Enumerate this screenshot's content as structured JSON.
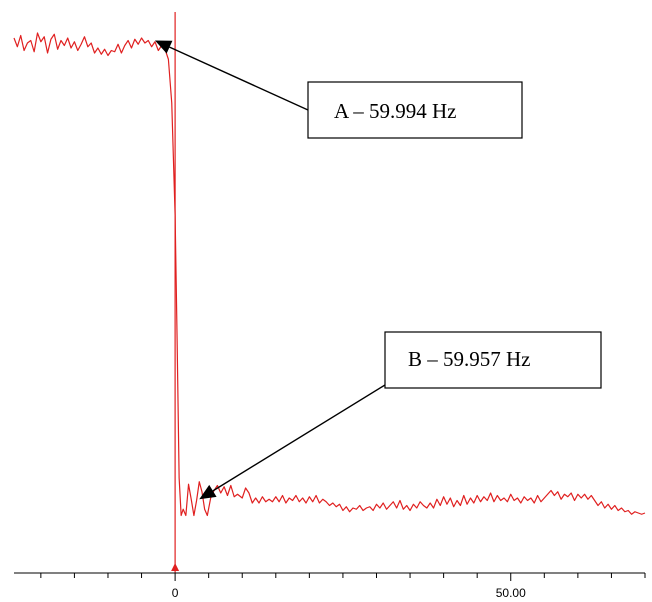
{
  "chart_data": {
    "type": "line",
    "title": "",
    "xlabel": "",
    "ylabel": "",
    "colors": {
      "series": "#e02020",
      "event_marker": "#e02020",
      "axis": "#000000"
    },
    "xlim": [
      -24,
      70
    ],
    "x_ticks": [
      {
        "x": 0,
        "label": "0"
      },
      {
        "x": 50,
        "label": "50.00"
      }
    ],
    "event_marker_x": 0,
    "series": [
      {
        "values": [
          [
            -24,
            59.9942
          ],
          [
            -23.5,
            59.9935
          ],
          [
            -23,
            59.9944
          ],
          [
            -22.5,
            59.9932
          ],
          [
            -22,
            59.9938
          ],
          [
            -21.5,
            59.994
          ],
          [
            -21,
            59.9931
          ],
          [
            -20.5,
            59.9946
          ],
          [
            -20,
            59.9939
          ],
          [
            -19.5,
            59.9943
          ],
          [
            -19,
            59.993
          ],
          [
            -18.5,
            59.9941
          ],
          [
            -18,
            59.9945
          ],
          [
            -17.5,
            59.9933
          ],
          [
            -17,
            59.994
          ],
          [
            -16.5,
            59.9936
          ],
          [
            -16,
            59.9942
          ],
          [
            -15.5,
            59.9934
          ],
          [
            -15,
            59.9939
          ],
          [
            -14.5,
            59.9932
          ],
          [
            -14,
            59.9937
          ],
          [
            -13.5,
            59.9943
          ],
          [
            -13,
            59.9935
          ],
          [
            -12.5,
            59.9938
          ],
          [
            -12,
            59.993
          ],
          [
            -11.5,
            59.9934
          ],
          [
            -11,
            59.9929
          ],
          [
            -10.5,
            59.9933
          ],
          [
            -10,
            59.9928
          ],
          [
            -9.5,
            59.9932
          ],
          [
            -9,
            59.9931
          ],
          [
            -8.5,
            59.9937
          ],
          [
            -8,
            59.993
          ],
          [
            -7.5,
            59.9936
          ],
          [
            -7,
            59.994
          ],
          [
            -6.5,
            59.9934
          ],
          [
            -6,
            59.9941
          ],
          [
            -5.5,
            59.9937
          ],
          [
            -5,
            59.9942
          ],
          [
            -4.5,
            59.9938
          ],
          [
            -4,
            59.994
          ],
          [
            -3.5,
            59.9935
          ],
          [
            -3,
            59.9939
          ],
          [
            -2.5,
            59.9932
          ],
          [
            -2,
            59.9936
          ],
          [
            -1.5,
            59.9933
          ],
          [
            -1,
            59.9925
          ],
          [
            -0.5,
            59.989
          ],
          [
            0,
            59.98
          ],
          [
            0.3,
            59.97
          ],
          [
            0.6,
            59.959
          ],
          [
            0.9,
            59.956
          ],
          [
            1.2,
            59.9565
          ],
          [
            1.6,
            59.956
          ],
          [
            2,
            59.9585
          ],
          [
            2.4,
            59.9573
          ],
          [
            2.8,
            59.956
          ],
          [
            3.2,
            59.9572
          ],
          [
            3.6,
            59.9587
          ],
          [
            4,
            59.9579
          ],
          [
            4.4,
            59.9565
          ],
          [
            4.8,
            59.956
          ],
          [
            5.3,
            59.9574
          ],
          [
            5.8,
            59.958
          ],
          [
            6.3,
            59.9584
          ],
          [
            6.8,
            59.9578
          ],
          [
            7.3,
            59.9583
          ],
          [
            7.8,
            59.9576
          ],
          [
            8.3,
            59.9584
          ],
          [
            8.8,
            59.9575
          ],
          [
            9.3,
            59.9577
          ],
          [
            10,
            59.9574
          ],
          [
            10.5,
            59.9582
          ],
          [
            11,
            59.9578
          ],
          [
            11.5,
            59.957
          ],
          [
            12,
            59.9574
          ],
          [
            12.5,
            59.957
          ],
          [
            13,
            59.9575
          ],
          [
            13.5,
            59.9571
          ],
          [
            14,
            59.9573
          ],
          [
            14.5,
            59.9571
          ],
          [
            15,
            59.9575
          ],
          [
            15.5,
            59.9571
          ],
          [
            16,
            59.9576
          ],
          [
            16.5,
            59.957
          ],
          [
            17,
            59.9574
          ],
          [
            17.5,
            59.9572
          ],
          [
            18,
            59.9576
          ],
          [
            18.5,
            59.9571
          ],
          [
            19,
            59.9574
          ],
          [
            19.5,
            59.957
          ],
          [
            20,
            59.9575
          ],
          [
            20.5,
            59.9571
          ],
          [
            21,
            59.9576
          ],
          [
            21.5,
            59.957
          ],
          [
            22,
            59.9573
          ],
          [
            22.5,
            59.9571
          ],
          [
            23,
            59.9568
          ],
          [
            23.5,
            59.957
          ],
          [
            24,
            59.9567
          ],
          [
            24.5,
            59.9569
          ],
          [
            25,
            59.9564
          ],
          [
            25.5,
            59.9567
          ],
          [
            26,
            59.9563
          ],
          [
            26.5,
            59.9566
          ],
          [
            27,
            59.9565
          ],
          [
            27.5,
            59.9568
          ],
          [
            28,
            59.9564
          ],
          [
            28.5,
            59.9566
          ],
          [
            29,
            59.9567
          ],
          [
            29.5,
            59.9564
          ],
          [
            30,
            59.9569
          ],
          [
            30.5,
            59.9566
          ],
          [
            31,
            59.957
          ],
          [
            31.5,
            59.9565
          ],
          [
            32,
            59.9568
          ],
          [
            32.5,
            59.9571
          ],
          [
            33,
            59.9566
          ],
          [
            33.5,
            59.9572
          ],
          [
            34,
            59.9565
          ],
          [
            34.5,
            59.9568
          ],
          [
            35,
            59.9564
          ],
          [
            35.5,
            59.9569
          ],
          [
            36,
            59.9566
          ],
          [
            36.5,
            59.9571
          ],
          [
            37,
            59.9568
          ],
          [
            37.5,
            59.9566
          ],
          [
            38,
            59.957
          ],
          [
            38.5,
            59.9566
          ],
          [
            39,
            59.9573
          ],
          [
            39.5,
            59.9568
          ],
          [
            40,
            59.9575
          ],
          [
            40.5,
            59.9569
          ],
          [
            41,
            59.9574
          ],
          [
            41.5,
            59.9567
          ],
          [
            42,
            59.9572
          ],
          [
            42.5,
            59.9568
          ],
          [
            43,
            59.9576
          ],
          [
            43.5,
            59.9569
          ],
          [
            44,
            59.9574
          ],
          [
            44.5,
            59.957
          ],
          [
            45,
            59.9576
          ],
          [
            45.5,
            59.9571
          ],
          [
            46,
            59.9575
          ],
          [
            46.5,
            59.9572
          ],
          [
            47,
            59.9578
          ],
          [
            47.5,
            59.9571
          ],
          [
            48,
            59.9576
          ],
          [
            48.5,
            59.9572
          ],
          [
            49,
            59.9574
          ],
          [
            49.5,
            59.9571
          ],
          [
            50,
            59.9577
          ],
          [
            50.5,
            59.9572
          ],
          [
            51,
            59.9574
          ],
          [
            51.5,
            59.957
          ],
          [
            52,
            59.9575
          ],
          [
            52.5,
            59.9572
          ],
          [
            53,
            59.9574
          ],
          [
            53.5,
            59.957
          ],
          [
            54,
            59.9576
          ],
          [
            54.5,
            59.9571
          ],
          [
            55,
            59.9574
          ],
          [
            55.5,
            59.9577
          ],
          [
            56,
            59.958
          ],
          [
            56.5,
            59.9576
          ],
          [
            57,
            59.9579
          ],
          [
            57.5,
            59.9573
          ],
          [
            58,
            59.9577
          ],
          [
            58.5,
            59.9575
          ],
          [
            59,
            59.9578
          ],
          [
            59.5,
            59.9572
          ],
          [
            60,
            59.9577
          ],
          [
            60.5,
            59.9574
          ],
          [
            61,
            59.9577
          ],
          [
            61.5,
            59.9573
          ],
          [
            62,
            59.9576
          ],
          [
            62.5,
            59.9572
          ],
          [
            63,
            59.9568
          ],
          [
            63.5,
            59.9571
          ],
          [
            64,
            59.9566
          ],
          [
            64.5,
            59.9569
          ],
          [
            65,
            59.9565
          ],
          [
            65.5,
            59.9568
          ],
          [
            66,
            59.9564
          ],
          [
            66.5,
            59.9566
          ],
          [
            67,
            59.9563
          ],
          [
            67.5,
            59.9564
          ],
          [
            68,
            59.9561
          ],
          [
            68.5,
            59.9563
          ],
          [
            69,
            59.9562
          ],
          [
            69.5,
            59.9561
          ],
          [
            70,
            59.9562
          ]
        ]
      }
    ],
    "annotations": [
      {
        "label": "A – 59.994 Hz",
        "target": [
          -3,
          59.994
        ]
      },
      {
        "label": "B – 59.957 Hz",
        "target": [
          3.6,
          59.9573
        ]
      }
    ]
  }
}
